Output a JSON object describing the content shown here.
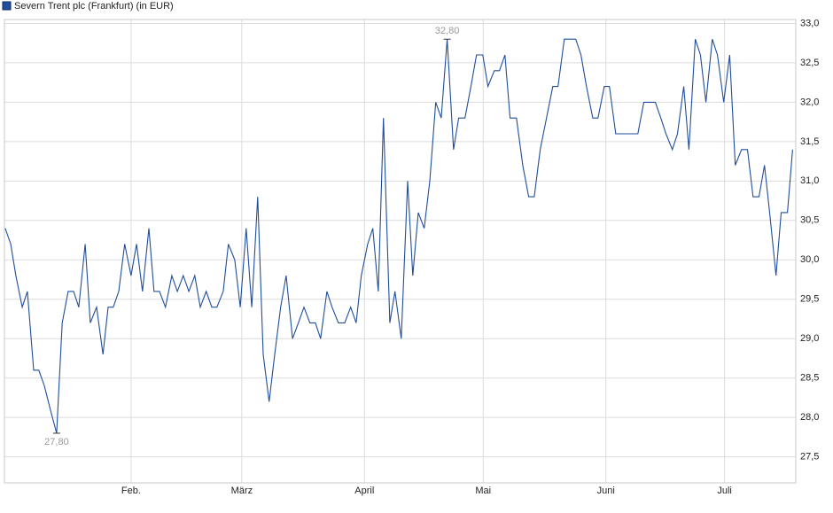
{
  "chart_data": {
    "type": "line",
    "title": "Severn Trent plc (Frankfurt) (in EUR)",
    "x": [
      0.2,
      1.6,
      2.9,
      4.5,
      5.8,
      7.4,
      8.7,
      10.1,
      11.6,
      13.2,
      14.6,
      16.1,
      17.5,
      18.8,
      20.4,
      21.7,
      23.3,
      24.9,
      26.2,
      27.5,
      28.9,
      30.4,
      32.0,
      33.4,
      34.9,
      36.5,
      37.8,
      39.2,
      40.7,
      42.3,
      43.7,
      45.2,
      46.6,
      48.1,
      49.5,
      51.0,
      52.4,
      53.7,
      55.3,
      56.6,
      58.2,
      59.6,
      61.1,
      62.5,
      64.0,
      65.4,
      66.9,
      68.3,
      69.8,
      71.2,
      72.8,
      74.3,
      75.7,
      77.2,
      78.6,
      79.9,
      81.5,
      82.8,
      84.4,
      86.0,
      87.5,
      88.9,
      90.2,
      91.8,
      93.1,
      94.5,
      95.8,
      97.4,
      98.7,
      100.3,
      101.9,
      103.2,
      104.6,
      106.1,
      107.5,
      109.0,
      110.4,
      111.9,
      113.5,
      114.8,
      116.4,
      117.9,
      119.3,
      120.9,
      122.2,
      123.8,
      125.1,
      126.5,
      127.8,
      129.4,
      131.0,
      132.5,
      133.9,
      135.4,
      137.0,
      138.6,
      139.9,
      141.5,
      143.0,
      144.4,
      145.7,
      147.1,
      148.7,
      150.0,
      151.6,
      152.9,
      154.5,
      155.8,
      157.4,
      158.7,
      160.1,
      161.6,
      163.0,
      164.5,
      165.9,
      167.2,
      168.8,
      170.1,
      171.7,
      173.0,
      174.6,
      175.9,
      177.3,
      178.9,
      180.2,
      181.8,
      183.3,
      184.7,
      186.3,
      187.8,
      189.2,
      190.7,
      192.1,
      193.4,
      195.0,
      196.3,
      197.9,
      199.2
    ],
    "series": [
      {
        "name": "Severn Trent plc (Frankfurt) (in EUR)",
        "color": "#1f4e9c",
        "values": [
          30.4,
          30.2,
          29.8,
          29.4,
          29.6,
          28.6,
          28.6,
          28.4,
          28.1,
          27.8,
          29.2,
          29.6,
          29.6,
          29.4,
          30.2,
          29.2,
          29.4,
          28.8,
          29.4,
          29.4,
          29.6,
          30.2,
          29.8,
          30.2,
          29.6,
          30.4,
          29.6,
          29.6,
          29.4,
          29.8,
          29.6,
          29.8,
          29.6,
          29.8,
          29.4,
          29.6,
          29.4,
          29.4,
          29.6,
          30.2,
          30.0,
          29.4,
          30.4,
          29.4,
          30.8,
          28.8,
          28.2,
          28.8,
          29.4,
          29.8,
          29.0,
          29.2,
          29.4,
          29.2,
          29.2,
          29.0,
          29.6,
          29.4,
          29.2,
          29.2,
          29.4,
          29.2,
          29.8,
          30.2,
          30.4,
          29.6,
          31.8,
          29.2,
          29.6,
          29.0,
          31.0,
          29.8,
          30.6,
          30.4,
          31.0,
          32.0,
          31.8,
          32.8,
          31.4,
          31.8,
          31.8,
          32.2,
          32.6,
          32.6,
          32.2,
          32.4,
          32.4,
          32.6,
          31.8,
          31.8,
          31.2,
          30.8,
          30.8,
          31.4,
          31.8,
          32.2,
          32.2,
          32.8,
          32.8,
          32.8,
          32.6,
          32.2,
          31.8,
          31.8,
          32.2,
          32.2,
          31.6,
          31.6,
          31.6,
          31.6,
          31.6,
          32.0,
          32.0,
          32.0,
          31.8,
          31.6,
          31.4,
          31.6,
          32.2,
          31.4,
          32.8,
          32.6,
          32.0,
          32.8,
          32.6,
          32.0,
          32.6,
          31.2,
          31.4,
          31.4,
          30.8,
          30.8,
          31.2,
          30.6,
          29.8,
          30.6,
          30.6,
          31.4
        ],
        "value_labels": [
          null,
          null,
          null,
          null,
          null,
          null,
          null,
          null,
          null,
          "27,80",
          null,
          null,
          null,
          null,
          null,
          null,
          null,
          null,
          null,
          null,
          null,
          null,
          null,
          null,
          null,
          null,
          null,
          null,
          null,
          null,
          null,
          null,
          null,
          null,
          null,
          null,
          null,
          null,
          null,
          null,
          null,
          null,
          null,
          null,
          null,
          null,
          null,
          null,
          null,
          null,
          null,
          null,
          null,
          null,
          null,
          null,
          null,
          null,
          null,
          null,
          null,
          null,
          null,
          null,
          null,
          null,
          null,
          null,
          null,
          null,
          null,
          null,
          null,
          null,
          null,
          null,
          null,
          "32,80",
          null,
          null,
          null,
          null,
          null,
          null,
          null,
          null,
          null,
          null,
          null,
          null,
          null,
          null,
          null,
          null,
          null,
          null,
          null,
          null,
          null,
          null,
          null,
          null,
          null,
          null,
          null,
          null,
          null,
          null,
          null,
          null,
          null,
          null,
          null,
          null,
          null,
          null,
          null,
          null,
          null,
          null,
          null,
          null,
          null,
          null,
          null,
          null,
          null,
          null,
          null,
          null,
          null,
          null,
          null,
          null,
          null,
          null,
          null,
          null
        ]
      }
    ],
    "xlim": [
      0,
      200
    ],
    "xticks": [
      {
        "value": 32,
        "label": "Feb."
      },
      {
        "value": 60,
        "label": "März"
      },
      {
        "value": 91,
        "label": "April"
      },
      {
        "value": 121,
        "label": "Mai"
      },
      {
        "value": 152,
        "label": "Juni"
      },
      {
        "value": 182,
        "label": "Juli"
      }
    ],
    "ylim": [
      27.17,
      33.05
    ],
    "yticks": [
      {
        "value": 27.5,
        "label": "27,5"
      },
      {
        "value": 28,
        "label": "28,0"
      },
      {
        "value": 28.5,
        "label": "28,5"
      },
      {
        "value": 29,
        "label": "29,0"
      },
      {
        "value": 29.5,
        "label": "29,5"
      },
      {
        "value": 30,
        "label": "30,0"
      },
      {
        "value": 30.5,
        "label": "30,5"
      },
      {
        "value": 31,
        "label": "31,0"
      },
      {
        "value": 31.5,
        "label": "31,5"
      },
      {
        "value": 32,
        "label": "32,0"
      },
      {
        "value": 32.5,
        "label": "32,5"
      },
      {
        "value": 33,
        "label": "33,0"
      }
    ],
    "grid": true
  }
}
